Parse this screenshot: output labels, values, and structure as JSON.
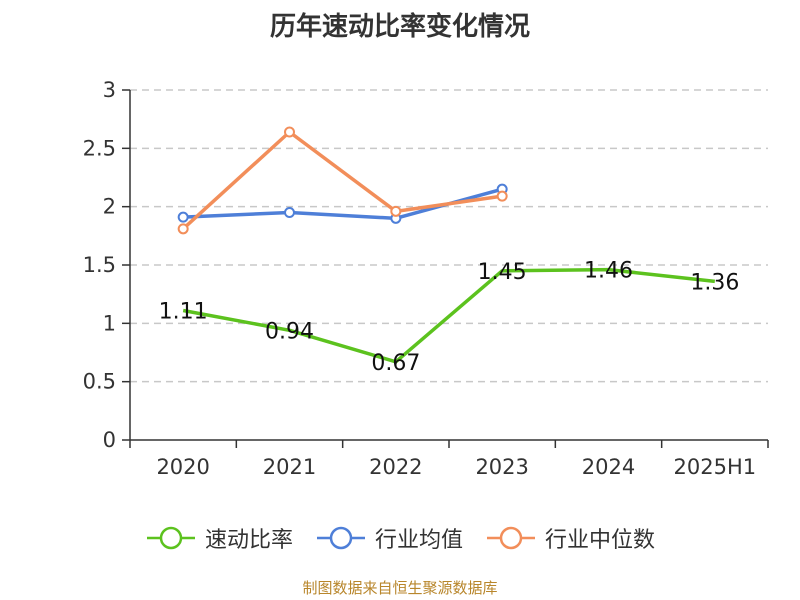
{
  "chart_data": {
    "type": "line",
    "title": "历年速动比率变化情况",
    "categories": [
      "2020",
      "2021",
      "2022",
      "2023",
      "2024",
      "2025H1"
    ],
    "ylim": [
      0,
      3
    ],
    "yticks": [
      "0",
      "0.5",
      "1",
      "1.5",
      "2",
      "2.5",
      "3"
    ],
    "grid": true,
    "legend_position": "bottom",
    "series": [
      {
        "name": "速动比率",
        "color": "#5cc21e",
        "values": [
          1.11,
          0.94,
          0.67,
          1.45,
          1.46,
          1.36
        ],
        "labels": [
          "1.11",
          "0.94",
          "0.67",
          "1.45",
          "1.46",
          "1.36"
        ],
        "markers": false
      },
      {
        "name": "行业均值",
        "color": "#4e7fd8",
        "values": [
          1.91,
          1.95,
          1.9,
          2.15,
          null,
          null
        ],
        "markers": true
      },
      {
        "name": "行业中位数",
        "color": "#f28e5a",
        "values": [
          1.81,
          2.64,
          1.96,
          2.09,
          null,
          null
        ],
        "markers": true
      }
    ]
  },
  "source": "制图数据来自恒生聚源数据库"
}
